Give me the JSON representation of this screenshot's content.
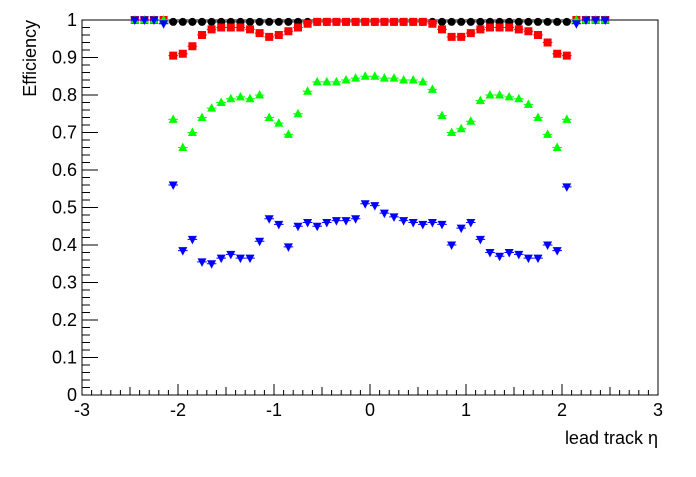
{
  "chart_data": {
    "type": "scatter",
    "x_label": "lead track  η",
    "y_label": "Efficiency",
    "xlim": [
      -3,
      3
    ],
    "xticks": [
      -3,
      -2,
      -1,
      0,
      1,
      2,
      3
    ],
    "ylim": [
      0,
      1
    ],
    "yticks": [
      0,
      0.1,
      0.2,
      0.3,
      0.4,
      0.5,
      0.6,
      0.7,
      0.8,
      0.9,
      1
    ],
    "x": [
      -2.45,
      -2.35,
      -2.25,
      -2.15,
      -2.05,
      -1.95,
      -1.85,
      -1.75,
      -1.65,
      -1.55,
      -1.45,
      -1.35,
      -1.25,
      -1.15,
      -1.05,
      -0.95,
      -0.85,
      -0.75,
      -0.65,
      -0.55,
      -0.45,
      -0.35,
      -0.25,
      -0.15,
      -0.05,
      0.05,
      0.15,
      0.25,
      0.35,
      0.45,
      0.55,
      0.65,
      0.75,
      0.85,
      0.95,
      1.05,
      1.15,
      1.25,
      1.35,
      1.45,
      1.55,
      1.65,
      1.75,
      1.85,
      1.95,
      2.05,
      2.15,
      2.25,
      2.35,
      2.45
    ],
    "series": [
      {
        "color": "#000000",
        "marker": "circle",
        "values": [
          1,
          1,
          1,
          1,
          0.995,
          0.995,
          0.995,
          0.995,
          0.995,
          0.995,
          0.995,
          0.995,
          0.995,
          0.995,
          0.995,
          0.995,
          0.995,
          0.995,
          0.995,
          0.995,
          0.995,
          0.995,
          0.995,
          0.995,
          0.995,
          0.995,
          0.995,
          0.995,
          0.995,
          0.995,
          0.995,
          0.995,
          0.995,
          0.995,
          0.995,
          0.995,
          0.995,
          0.995,
          0.995,
          0.995,
          0.995,
          0.995,
          0.995,
          0.995,
          0.995,
          0.995,
          1,
          1,
          1,
          1
        ]
      },
      {
        "color": "#ff0000",
        "marker": "square",
        "values": [
          1,
          1,
          1,
          1,
          0.905,
          0.91,
          0.93,
          0.96,
          0.975,
          0.98,
          0.98,
          0.98,
          0.975,
          0.965,
          0.955,
          0.96,
          0.97,
          0.98,
          0.99,
          0.995,
          0.995,
          0.995,
          0.995,
          0.995,
          0.995,
          0.995,
          0.995,
          0.995,
          0.995,
          0.995,
          0.995,
          0.99,
          0.975,
          0.955,
          0.955,
          0.965,
          0.975,
          0.98,
          0.98,
          0.98,
          0.975,
          0.97,
          0.96,
          0.94,
          0.91,
          0.905,
          1,
          1,
          1,
          1
        ]
      },
      {
        "color": "#00ff00",
        "marker": "triangle-up",
        "values": [
          1,
          1,
          1,
          1,
          0.735,
          0.66,
          0.7,
          0.74,
          0.765,
          0.78,
          0.79,
          0.795,
          0.79,
          0.8,
          0.74,
          0.725,
          0.695,
          0.75,
          0.81,
          0.835,
          0.835,
          0.835,
          0.84,
          0.845,
          0.85,
          0.85,
          0.845,
          0.845,
          0.84,
          0.84,
          0.835,
          0.815,
          0.745,
          0.7,
          0.71,
          0.73,
          0.785,
          0.8,
          0.8,
          0.795,
          0.79,
          0.775,
          0.74,
          0.695,
          0.66,
          0.735,
          1,
          1,
          1,
          1
        ]
      },
      {
        "color": "#0000ff",
        "marker": "triangle-down",
        "values": [
          1,
          1,
          1,
          0.99,
          0.56,
          0.385,
          0.415,
          0.355,
          0.35,
          0.365,
          0.375,
          0.365,
          0.365,
          0.41,
          0.47,
          0.455,
          0.395,
          0.45,
          0.46,
          0.45,
          0.46,
          0.465,
          0.465,
          0.47,
          0.51,
          0.505,
          0.485,
          0.475,
          0.465,
          0.46,
          0.455,
          0.46,
          0.455,
          0.4,
          0.445,
          0.46,
          0.415,
          0.38,
          0.37,
          0.38,
          0.375,
          0.365,
          0.365,
          0.4,
          0.385,
          0.555,
          0.99,
          1,
          1,
          1
        ]
      }
    ]
  }
}
